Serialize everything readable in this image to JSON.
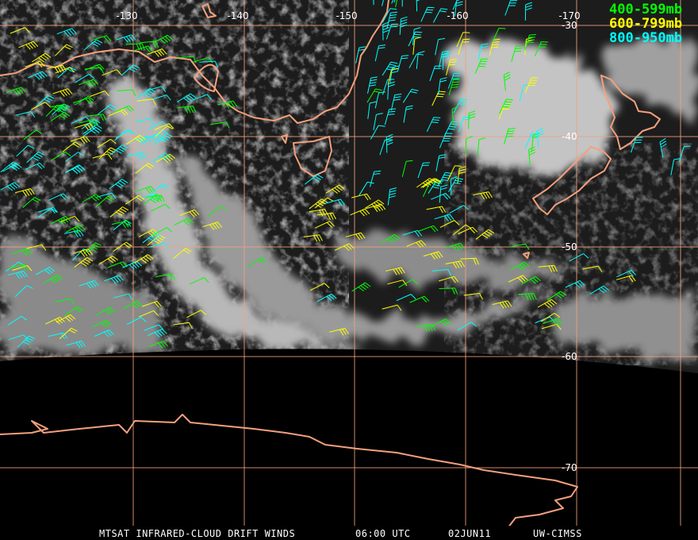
{
  "map": {
    "longitude_labels": [
      "-130",
      "-140",
      "-150",
      "-160",
      "-170"
    ],
    "latitude_labels": [
      "-30",
      "-40",
      "-50",
      "-60",
      "-70"
    ],
    "legend": [
      {
        "label": "400-599mb",
        "color": "#00ff00"
      },
      {
        "label": "600-799mb",
        "color": "#ffff00"
      },
      {
        "label": "800-950mb",
        "color": "#00ffff"
      }
    ],
    "footer": {
      "product": "MTSAT INFRARED-CLOUD DRIFT WINDS",
      "time": "06:00 UTC",
      "date": "02JUN11",
      "source": "UW-CIMSS"
    }
  }
}
